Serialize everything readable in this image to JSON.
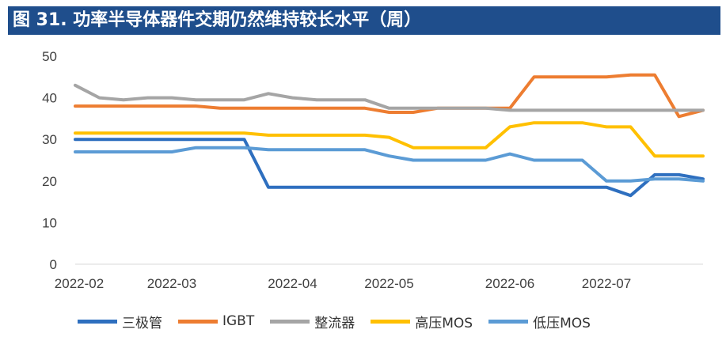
{
  "header": {
    "title": "图 31. 功率半导体器件交期仍然维持较长水平（周）"
  },
  "chart_data": {
    "type": "line",
    "title": "图 31. 功率半导体器件交期仍然维持较长水平（周）",
    "xlabel": "",
    "ylabel": "",
    "ylim": [
      0,
      50
    ],
    "yticks": [
      "0",
      "10",
      "20",
      "30",
      "40",
      "50"
    ],
    "xticks": [
      "2022-02",
      "2022-03",
      "2022-04",
      "2022-05",
      "2022-06",
      "2022-07"
    ],
    "legend_position": "bottom",
    "grid": false,
    "x": [
      "2022-02-01",
      "2022-02-08",
      "2022-02-15",
      "2022-02-22",
      "2022-03-01",
      "2022-03-08",
      "2022-03-15",
      "2022-03-22",
      "2022-03-29",
      "2022-04-05",
      "2022-04-12",
      "2022-04-19",
      "2022-04-26",
      "2022-05-03",
      "2022-05-10",
      "2022-05-17",
      "2022-05-24",
      "2022-05-31",
      "2022-06-07",
      "2022-06-14",
      "2022-06-21",
      "2022-06-28",
      "2022-07-05",
      "2022-07-12",
      "2022-07-19",
      "2022-07-26",
      "2022-08-02"
    ],
    "series": [
      {
        "name": "三极管",
        "color": "#2e6fbf",
        "values": [
          30,
          30,
          30,
          30,
          30,
          30,
          30,
          30,
          18.5,
          18.5,
          18.5,
          18.5,
          18.5,
          18.5,
          18.5,
          18.5,
          18.5,
          18.5,
          18.5,
          18.5,
          18.5,
          18.5,
          18.5,
          16.5,
          21.5,
          21.5,
          20.5
        ]
      },
      {
        "name": "IGBT",
        "color": "#ed7d31",
        "values": [
          38,
          38,
          38,
          38,
          38,
          38,
          37.5,
          37.5,
          37.5,
          37.5,
          37.5,
          37.5,
          37.5,
          36.5,
          36.5,
          37.5,
          37.5,
          37.5,
          37.5,
          45,
          45,
          45,
          45,
          45.5,
          45.5,
          35.5,
          37
        ]
      },
      {
        "name": "整流器",
        "color": "#a5a5a5",
        "values": [
          43,
          40,
          39.5,
          40,
          40,
          39.5,
          39.5,
          39.5,
          41,
          40,
          39.5,
          39.5,
          39.5,
          37.5,
          37.5,
          37.5,
          37.5,
          37.5,
          37,
          37,
          37,
          37,
          37,
          37,
          37,
          37,
          37
        ]
      },
      {
        "name": "高压MOS",
        "color": "#ffc000",
        "values": [
          31.5,
          31.5,
          31.5,
          31.5,
          31.5,
          31.5,
          31.5,
          31.5,
          31,
          31,
          31,
          31,
          31,
          30.5,
          28,
          28,
          28,
          28,
          33,
          34,
          34,
          34,
          33,
          33,
          26,
          26,
          26
        ]
      },
      {
        "name": "低压MOS",
        "color": "#5b9bd5",
        "values": [
          27,
          27,
          27,
          27,
          27,
          28,
          28,
          28,
          27.5,
          27.5,
          27.5,
          27.5,
          27.5,
          26,
          25,
          25,
          25,
          25,
          26.5,
          25,
          25,
          25,
          20,
          20,
          20.5,
          20.5,
          20
        ]
      }
    ]
  }
}
